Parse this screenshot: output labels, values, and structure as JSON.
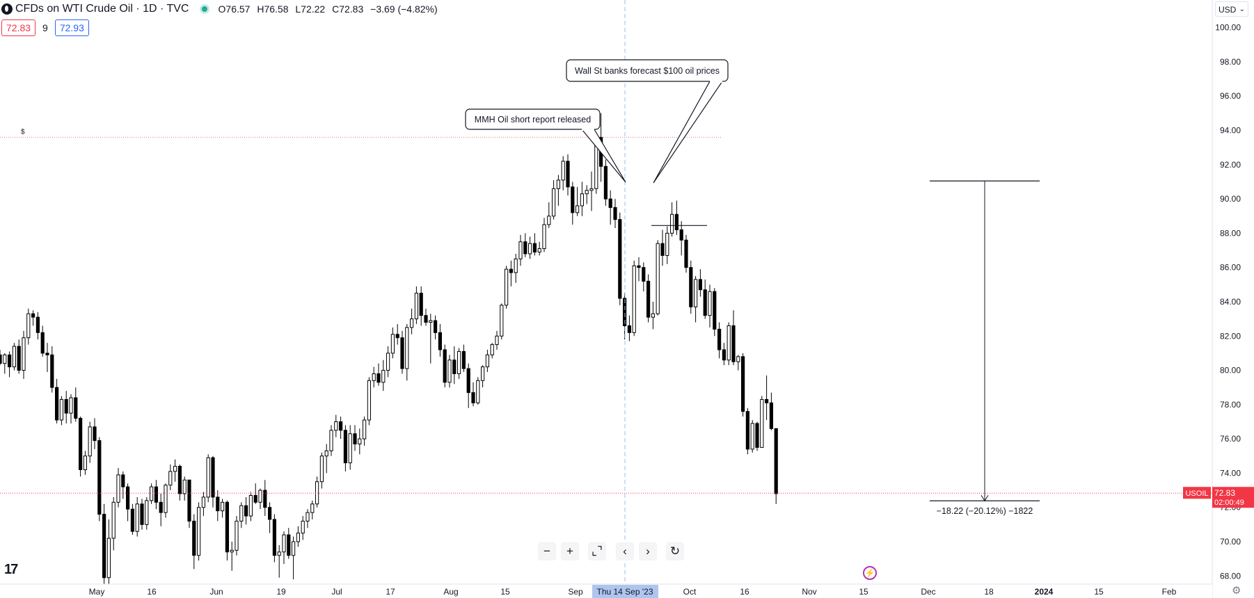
{
  "header": {
    "title": "CFDs on WTI Crude Oil · 1D · TVC",
    "ohlc": {
      "open": "O76.57",
      "high": "H76.58",
      "low": "L72.22",
      "close": "C72.83",
      "change": "−3.69 (−4.82%)"
    },
    "sell_price": "72.83",
    "spread": "9",
    "buy_price": "72.93",
    "currency": "USD"
  },
  "price_tag": {
    "symbol": "USOIL",
    "price": "72.83",
    "countdown": "02:00:49"
  },
  "crosshair_label": "Thu 14 Sep '23",
  "annotations": {
    "callout_1": "MMH Oil short report released",
    "callout_2": "Wall St banks forecast $100 oil prices",
    "dollar_mark": "$",
    "measure_label": "−18.22 (−20.12%) −1822"
  },
  "toolbar": [
    {
      "name": "zoom-out-button",
      "glyph": "−"
    },
    {
      "name": "zoom-in-button",
      "glyph": "+"
    },
    {
      "name": "reset-scale-button",
      "glyph": "⌞⌝"
    },
    {
      "name": "scroll-left-button",
      "glyph": "‹"
    },
    {
      "name": "scroll-right-button",
      "glyph": "›"
    },
    {
      "name": "reset-chart-button",
      "glyph": "↻"
    }
  ],
  "logo_text": "17",
  "chart_data": {
    "type": "candlestick",
    "title": "CFDs on WTI Crude Oil · 1D · TVC",
    "x_ticks": [
      "May",
      "16",
      "Jun",
      "19",
      "Jul",
      "17",
      "Aug",
      "15",
      "Sep",
      "Oct",
      "16",
      "Nov",
      "15",
      "Dec",
      "18",
      "2024",
      "15",
      "Feb"
    ],
    "y_ticks": [
      "68.00",
      "70.00",
      "72.00",
      "74.00",
      "76.00",
      "78.00",
      "80.00",
      "82.00",
      "84.00",
      "86.00",
      "88.00",
      "90.00",
      "92.00",
      "94.00",
      "96.00",
      "98.00",
      "100.00"
    ],
    "y_range": [
      67.2,
      101.0
    ],
    "last_price": 72.83,
    "series": [
      {
        "name": "USOIL",
        "candles": [
          [
            80.9,
            81.2,
            80.3,
            80.4
          ],
          [
            80.4,
            81.0,
            79.8,
            80.9
          ],
          [
            80.9,
            81.1,
            79.6,
            80.2
          ],
          [
            80.2,
            81.6,
            80.0,
            81.4
          ],
          [
            81.4,
            81.8,
            79.8,
            80.0
          ],
          [
            80.0,
            82.3,
            79.5,
            81.9
          ],
          [
            81.9,
            83.6,
            81.5,
            83.3
          ],
          [
            83.3,
            83.5,
            82.6,
            83.1
          ],
          [
            83.1,
            83.4,
            81.8,
            82.2
          ],
          [
            82.2,
            82.6,
            80.8,
            81.0
          ],
          [
            81.0,
            81.6,
            79.9,
            80.9
          ],
          [
            80.9,
            81.4,
            78.7,
            79.0
          ],
          [
            79.0,
            79.5,
            76.9,
            77.1
          ],
          [
            77.1,
            78.5,
            76.8,
            78.3
          ],
          [
            78.3,
            78.8,
            76.9,
            77.5
          ],
          [
            77.5,
            78.6,
            76.9,
            78.4
          ],
          [
            78.4,
            79.0,
            77.0,
            77.2
          ],
          [
            77.2,
            77.3,
            73.8,
            74.2
          ],
          [
            74.2,
            75.3,
            73.9,
            75.0
          ],
          [
            75.0,
            77.0,
            74.6,
            76.7
          ],
          [
            76.7,
            77.2,
            75.4,
            75.9
          ],
          [
            75.9,
            76.1,
            71.2,
            71.6
          ],
          [
            71.6,
            72.2,
            67.3,
            67.9
          ],
          [
            67.9,
            71.3,
            67.2,
            70.2
          ],
          [
            70.2,
            72.6,
            69.5,
            72.3
          ],
          [
            72.3,
            74.3,
            72.0,
            73.9
          ],
          [
            73.9,
            74.1,
            72.5,
            73.2
          ],
          [
            73.2,
            73.4,
            71.2,
            71.9
          ],
          [
            71.9,
            72.2,
            70.4,
            70.6
          ],
          [
            70.6,
            72.6,
            70.3,
            72.2
          ],
          [
            72.2,
            72.5,
            70.7,
            71.0
          ],
          [
            71.0,
            72.6,
            70.7,
            72.4
          ],
          [
            72.4,
            73.4,
            72.2,
            73.2
          ],
          [
            73.2,
            73.6,
            71.9,
            72.3
          ],
          [
            72.3,
            72.8,
            70.9,
            71.7
          ],
          [
            71.7,
            73.4,
            71.4,
            73.3
          ],
          [
            73.3,
            74.5,
            73.0,
            74.1
          ],
          [
            74.1,
            74.8,
            73.5,
            74.4
          ],
          [
            74.4,
            74.5,
            72.4,
            72.8
          ],
          [
            72.8,
            73.8,
            72.4,
            73.6
          ],
          [
            73.6,
            73.6,
            70.8,
            71.2
          ],
          [
            71.2,
            71.6,
            68.4,
            69.2
          ],
          [
            69.2,
            72.3,
            68.9,
            72.0
          ],
          [
            72.0,
            72.9,
            71.5,
            72.6
          ],
          [
            72.6,
            75.1,
            72.3,
            74.9
          ],
          [
            74.9,
            75.0,
            72.0,
            72.6
          ],
          [
            72.6,
            73.0,
            71.2,
            71.8
          ],
          [
            71.8,
            72.5,
            71.4,
            72.3
          ],
          [
            72.3,
            72.4,
            68.9,
            69.4
          ],
          [
            69.4,
            70.0,
            68.3,
            69.5
          ],
          [
            69.5,
            71.5,
            69.2,
            71.2
          ],
          [
            71.2,
            72.3,
            70.8,
            72.1
          ],
          [
            72.1,
            72.6,
            71.0,
            71.5
          ],
          [
            71.5,
            72.9,
            71.2,
            72.7
          ],
          [
            72.7,
            73.4,
            72.2,
            72.3
          ],
          [
            72.3,
            73.1,
            71.9,
            73.0
          ],
          [
            73.0,
            73.6,
            71.5,
            72.0
          ],
          [
            72.0,
            72.3,
            70.5,
            71.3
          ],
          [
            71.3,
            71.6,
            68.8,
            69.2
          ],
          [
            69.2,
            69.8,
            67.9,
            69.4
          ],
          [
            69.4,
            70.6,
            68.7,
            70.4
          ],
          [
            70.4,
            70.8,
            69.0,
            69.2
          ],
          [
            69.2,
            70.3,
            67.8,
            70.0
          ],
          [
            70.0,
            70.9,
            69.7,
            70.5
          ],
          [
            70.5,
            71.5,
            70.1,
            71.2
          ],
          [
            71.2,
            71.9,
            70.8,
            71.7
          ],
          [
            71.7,
            72.4,
            71.3,
            72.2
          ],
          [
            72.2,
            73.8,
            72.0,
            73.5
          ],
          [
            73.5,
            75.2,
            73.1,
            75.0
          ],
          [
            75.0,
            75.7,
            74.0,
            75.3
          ],
          [
            75.3,
            76.8,
            75.0,
            76.5
          ],
          [
            76.5,
            77.4,
            76.1,
            77.0
          ],
          [
            77.0,
            77.3,
            76.0,
            76.5
          ],
          [
            76.5,
            76.8,
            74.1,
            74.6
          ],
          [
            74.6,
            76.8,
            74.2,
            76.3
          ],
          [
            76.3,
            76.8,
            75.3,
            75.7
          ],
          [
            75.7,
            76.6,
            75.1,
            76.0
          ],
          [
            76.0,
            77.3,
            75.6,
            77.1
          ],
          [
            77.1,
            79.6,
            76.8,
            79.4
          ],
          [
            79.4,
            80.2,
            79.0,
            79.8
          ],
          [
            79.8,
            80.4,
            79.1,
            79.3
          ],
          [
            79.3,
            80.6,
            78.8,
            80.0
          ],
          [
            80.0,
            81.4,
            79.6,
            81.0
          ],
          [
            81.0,
            82.5,
            80.7,
            82.1
          ],
          [
            82.1,
            82.7,
            81.5,
            81.9
          ],
          [
            81.9,
            82.3,
            79.8,
            80.1
          ],
          [
            80.1,
            82.7,
            79.4,
            82.5
          ],
          [
            82.5,
            83.6,
            82.1,
            83.0
          ],
          [
            83.0,
            84.9,
            82.7,
            84.5
          ],
          [
            84.5,
            84.9,
            82.6,
            83.2
          ],
          [
            83.2,
            83.6,
            82.6,
            82.8
          ],
          [
            82.8,
            83.3,
            80.4,
            82.9
          ],
          [
            82.9,
            83.2,
            81.8,
            82.2
          ],
          [
            82.2,
            82.7,
            80.8,
            81.2
          ],
          [
            81.2,
            81.5,
            79.0,
            79.3
          ],
          [
            79.3,
            80.9,
            79.0,
            80.6
          ],
          [
            80.6,
            81.4,
            79.2,
            79.8
          ],
          [
            79.8,
            81.3,
            79.5,
            81.1
          ],
          [
            81.1,
            81.5,
            79.9,
            80.1
          ],
          [
            80.1,
            80.4,
            77.8,
            78.7
          ],
          [
            78.7,
            79.3,
            77.9,
            78.1
          ],
          [
            78.1,
            79.6,
            78.0,
            79.4
          ],
          [
            79.4,
            80.3,
            79.0,
            80.2
          ],
          [
            80.2,
            81.2,
            79.9,
            80.9
          ],
          [
            80.9,
            81.6,
            80.7,
            81.5
          ],
          [
            81.5,
            82.3,
            81.2,
            82.0
          ],
          [
            82.0,
            83.9,
            81.8,
            83.8
          ],
          [
            83.8,
            86.1,
            83.6,
            85.9
          ],
          [
            85.9,
            86.4,
            84.9,
            85.7
          ],
          [
            85.7,
            86.8,
            85.1,
            86.5
          ],
          [
            86.5,
            87.9,
            86.1,
            87.5
          ],
          [
            87.5,
            88.0,
            86.6,
            86.8
          ],
          [
            86.8,
            87.8,
            86.5,
            87.4
          ],
          [
            87.4,
            88.0,
            86.7,
            86.9
          ],
          [
            86.9,
            87.5,
            86.7,
            87.1
          ],
          [
            87.1,
            88.9,
            86.9,
            88.5
          ],
          [
            88.5,
            89.8,
            88.3,
            89.0
          ],
          [
            89.0,
            91.1,
            88.8,
            90.6
          ],
          [
            90.6,
            91.4,
            89.6,
            91.1
          ],
          [
            91.1,
            92.5,
            90.5,
            92.2
          ],
          [
            92.2,
            92.6,
            90.2,
            90.7
          ],
          [
            90.7,
            91.0,
            88.5,
            89.2
          ],
          [
            89.2,
            90.7,
            89.0,
            89.6
          ],
          [
            89.6,
            91.0,
            89.0,
            90.3
          ],
          [
            90.3,
            90.8,
            89.7,
            90.5
          ],
          [
            90.5,
            91.6,
            89.3,
            90.6
          ],
          [
            90.6,
            93.9,
            90.3,
            93.6
          ],
          [
            93.6,
            95.0,
            91.0,
            91.9
          ],
          [
            91.9,
            92.3,
            89.6,
            90.0
          ],
          [
            90.0,
            90.5,
            88.5,
            89.5
          ],
          [
            89.5,
            90.0,
            88.3,
            88.8
          ],
          [
            88.8,
            89.2,
            83.8,
            84.2
          ],
          [
            84.2,
            84.5,
            81.8,
            82.6
          ],
          [
            82.6,
            83.2,
            81.7,
            82.2
          ],
          [
            82.2,
            86.4,
            82.0,
            86.1
          ],
          [
            86.1,
            86.6,
            85.2,
            86.0
          ],
          [
            86.0,
            86.3,
            84.6,
            85.2
          ],
          [
            85.2,
            85.6,
            82.8,
            83.1
          ],
          [
            83.1,
            84.0,
            82.4,
            83.3
          ],
          [
            83.3,
            87.6,
            83.2,
            87.4
          ],
          [
            87.4,
            88.2,
            86.1,
            86.7
          ],
          [
            86.7,
            88.4,
            86.2,
            88.0
          ],
          [
            88.0,
            89.8,
            87.8,
            89.1
          ],
          [
            89.1,
            89.9,
            87.9,
            88.2
          ],
          [
            88.2,
            88.7,
            86.7,
            87.6
          ],
          [
            87.6,
            87.9,
            85.7,
            86.0
          ],
          [
            86.0,
            86.4,
            83.3,
            83.7
          ],
          [
            83.7,
            85.5,
            82.8,
            85.3
          ],
          [
            85.3,
            85.9,
            84.3,
            84.7
          ],
          [
            84.7,
            85.3,
            83.0,
            83.2
          ],
          [
            83.2,
            85.0,
            82.5,
            84.6
          ],
          [
            84.6,
            84.8,
            82.0,
            82.4
          ],
          [
            82.4,
            82.8,
            80.7,
            81.2
          ],
          [
            81.2,
            81.6,
            80.3,
            80.6
          ],
          [
            80.6,
            82.8,
            80.3,
            82.6
          ],
          [
            82.6,
            83.5,
            80.3,
            80.5
          ],
          [
            80.5,
            80.9,
            80.0,
            80.8
          ],
          [
            80.8,
            81.0,
            77.3,
            77.6
          ],
          [
            77.6,
            77.8,
            75.1,
            75.4
          ],
          [
            75.4,
            77.1,
            75.2,
            76.9
          ],
          [
            76.9,
            77.0,
            75.3,
            75.5
          ],
          [
            75.5,
            78.5,
            75.5,
            78.3
          ],
          [
            78.3,
            79.7,
            77.1,
            78.1
          ],
          [
            78.1,
            78.7,
            76.5,
            76.6
          ],
          [
            76.6,
            76.6,
            72.2,
            72.8
          ]
        ]
      }
    ],
    "measurement": {
      "from": 91.05,
      "to": 72.83,
      "change": "−18.22 (−20.12%) −1822"
    }
  }
}
